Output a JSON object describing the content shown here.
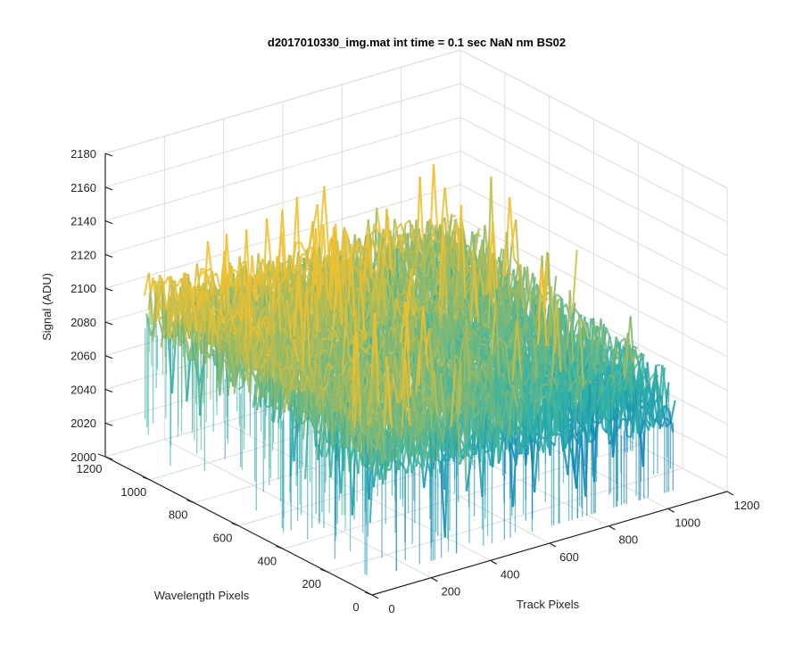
{
  "chart_data": {
    "type": "surface",
    "title": "d2017010330_img.mat int time = 0.1 sec  NaN nm BS02",
    "xlabel": "Track Pixels",
    "ylabel": "Wavelength Pixels",
    "zlabel": "Signal (ADU)",
    "xlim": [
      0,
      1200
    ],
    "ylim": [
      0,
      1200
    ],
    "zlim": [
      2000,
      2180
    ],
    "x_ticks": [
      "0",
      "200",
      "400",
      "600",
      "800",
      "1000",
      "1200"
    ],
    "y_ticks": [
      "0",
      "200",
      "400",
      "600",
      "800",
      "1000",
      "1200"
    ],
    "z_ticks": [
      "2000",
      "2020",
      "2040",
      "2060",
      "2080",
      "2100",
      "2120",
      "2140",
      "2160",
      "2180"
    ],
    "x_extent": [
      0,
      1024
    ],
    "y_extent": [
      0,
      1024
    ],
    "signal_mean_range": [
      2065,
      2100
    ],
    "signal_peak": 2150,
    "signal_min": 2010,
    "grid": true,
    "colormap": "parula",
    "colors": {
      "low": "#0072bd",
      "mid": "#2fb2a8",
      "high": "#f0c02e",
      "grid": "#dcdcdc",
      "axis": "#262626"
    }
  }
}
